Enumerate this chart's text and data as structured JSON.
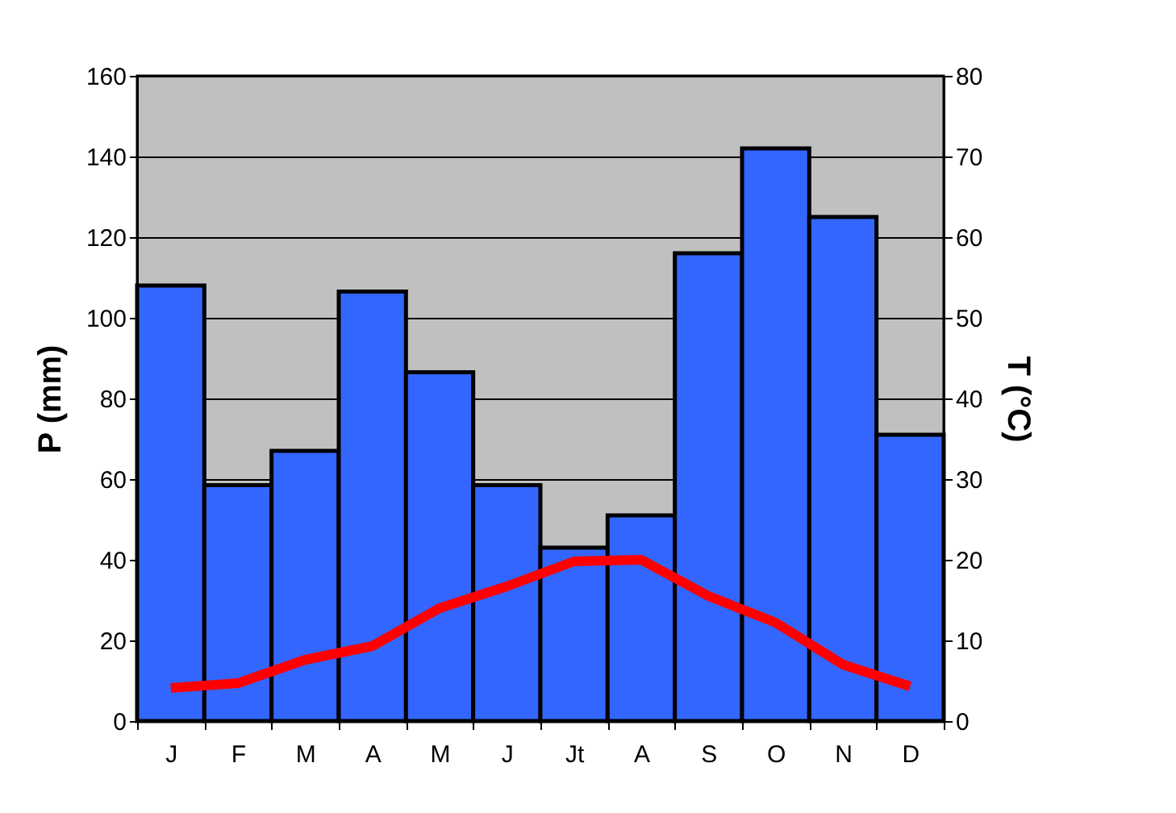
{
  "chart_data": {
    "type": "bar",
    "categories": [
      "J",
      "F",
      "M",
      "A",
      "M",
      "J",
      "Jt",
      "A",
      "S",
      "O",
      "N",
      "D"
    ],
    "ylabel": "P (mm)",
    "y2label": "T (°C)",
    "series": [
      {
        "color": "#3366ff",
        "values": [
          108,
          58.5,
          67,
          106.5,
          86.5,
          58.5,
          43,
          51,
          116,
          142,
          125,
          71
        ]
      },
      {
        "type": "line",
        "axis": "y2",
        "color": "#ff0000",
        "values": [
          4.1,
          4.7,
          7.6,
          9.3,
          14,
          16.7,
          19.8,
          20,
          15.5,
          12.2,
          7,
          4.3
        ]
      }
    ],
    "ylim": [
      0,
      160
    ],
    "yticks": [
      0,
      20,
      40,
      60,
      80,
      100,
      120,
      140,
      160
    ],
    "y2lim": [
      0,
      80
    ],
    "y2ticks": [
      0,
      10,
      20,
      30,
      40,
      50,
      60,
      70,
      80
    ],
    "grid": "y",
    "legend": false,
    "marker": "none",
    "line_style": "solid"
  }
}
